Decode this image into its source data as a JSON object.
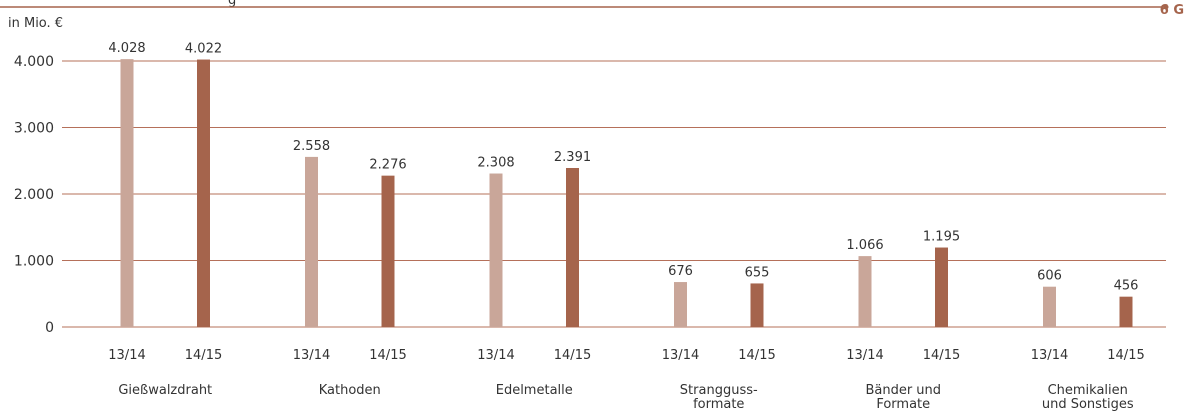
{
  "header": {
    "title_fragment": "g",
    "marker": "6 G"
  },
  "chart_data": {
    "type": "bar",
    "unit_label": "in Mio. €",
    "y_ticks": [
      "0",
      "1.000",
      "2.000",
      "3.000",
      "4.000"
    ],
    "y_tick_values": [
      0,
      1000,
      2000,
      3000,
      4000
    ],
    "ylim": [
      0,
      4400
    ],
    "grid": true,
    "series": [
      {
        "name": "13/14",
        "color": "#c9a699",
        "values": [
          4028,
          2558,
          2308,
          676,
          1066,
          606
        ]
      },
      {
        "name": "14/15",
        "color": "#a5644c",
        "values": [
          4022,
          2276,
          2391,
          655,
          1195,
          456
        ]
      }
    ],
    "data_labels": [
      [
        "4.028",
        "2.558",
        "2.308",
        "676",
        "1.066",
        "606"
      ],
      [
        "4.022",
        "2.276",
        "2.391",
        "655",
        "1.195",
        "456"
      ]
    ],
    "categories": [
      [
        "Gießwalzdraht"
      ],
      [
        "Kathoden"
      ],
      [
        "Edelmetalle"
      ],
      [
        "Strangguss-",
        "formate"
      ],
      [
        "Bänder und",
        "Formate"
      ],
      [
        "Chemikalien",
        "und Sonstiges"
      ]
    ],
    "colors": {
      "grid": "#b5705a",
      "header_rule": "#a5644c",
      "text": "#333333"
    }
  }
}
